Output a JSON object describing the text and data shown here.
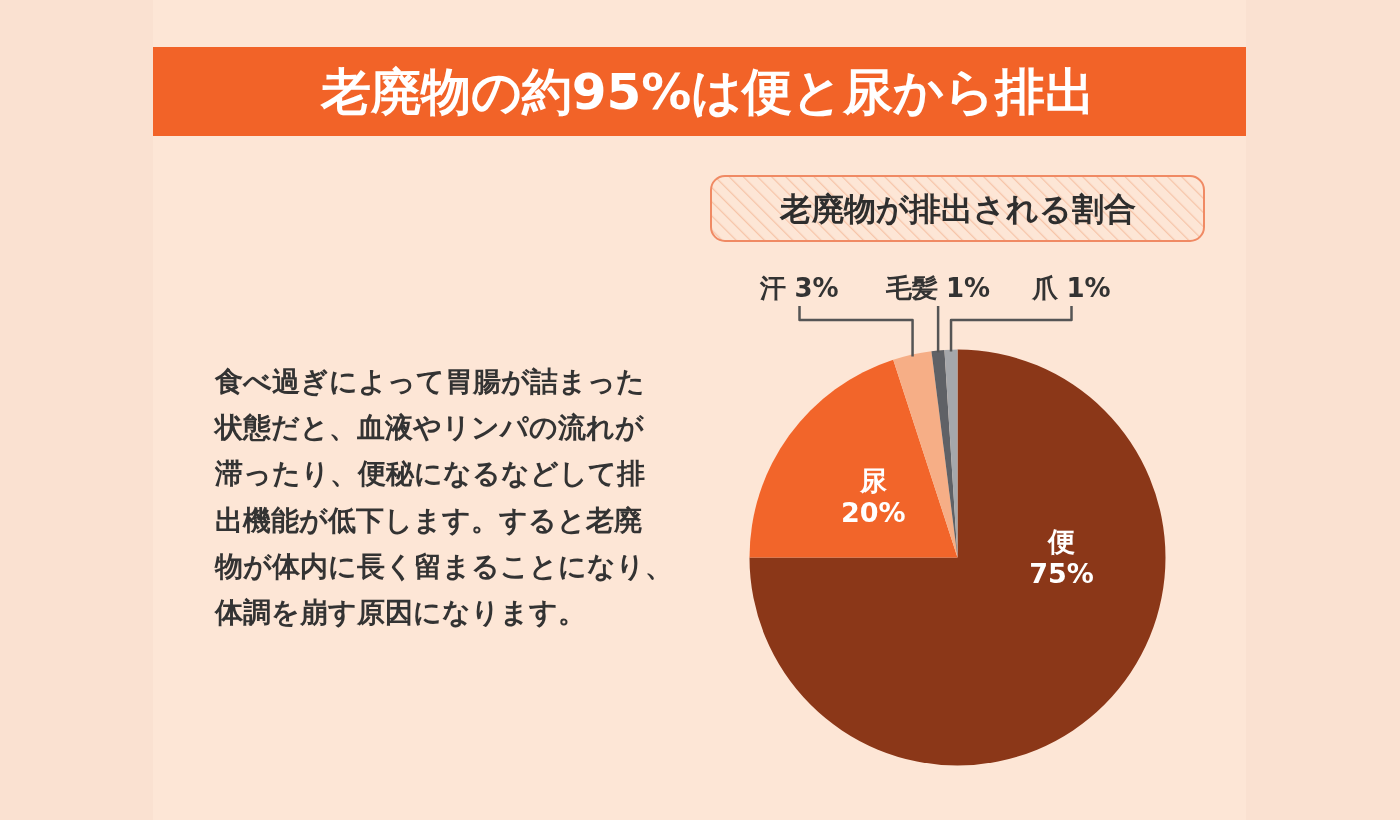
{
  "chart_data": {
    "type": "pie",
    "title": "老廃物の約95%は便と尿から排出",
    "subtitle": "老廃物が排出される割合",
    "categories": [
      "便",
      "尿",
      "汗",
      "毛髪",
      "爪"
    ],
    "values": [
      75,
      20,
      3,
      1,
      1
    ],
    "value_labels": [
      "75%",
      "20%",
      "3%",
      "1%",
      "1%"
    ],
    "colors": [
      "#8b3718",
      "#f2652a",
      "#f6ae86",
      "#5f6166",
      "#a5a7ab"
    ],
    "annotations": [
      "食べ過ぎによって胃腸が詰まった状態だと、血液やリンパの流れが滞ったり、便秘になるなどして排出機能が低下します。すると老廃物が体内に長く留まることになり、体調を崩す原因になります。"
    ]
  }
}
